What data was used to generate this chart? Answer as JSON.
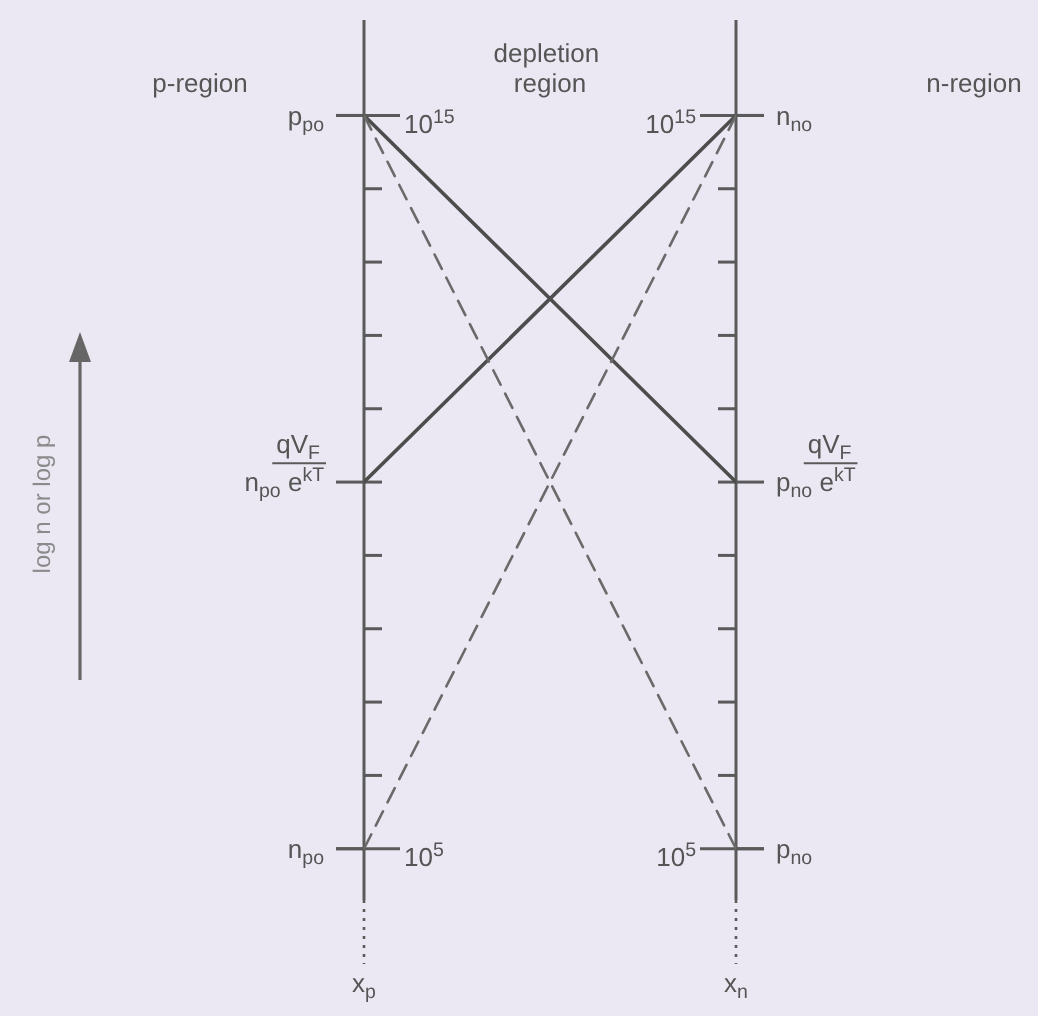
{
  "chart_data": {
    "type": "line",
    "categories": [
      "x$_{p}$",
      "x$_{n}$"
    ],
    "series": [
      {
        "color": "#4d4d4d",
        "line_style": "solid",
        "values": [
          1000000000000000.0,
          10000000000.0
        ]
      },
      {
        "color": "#4d4d4d",
        "line_style": "solid",
        "values": [
          10000000000.0,
          1000000000000000.0
        ]
      },
      {
        "color": "#6a6a6a",
        "line_style": "dashed",
        "values": [
          1000000000000000.0,
          100000.0
        ]
      },
      {
        "color": "#6a6a6a",
        "line_style": "dashed",
        "values": [
          100000.0,
          1000000000000000.0
        ]
      }
    ],
    "log": true,
    "ylim": [
      20000.0,
      2e+16
    ],
    "yticks": [
      {
        "value": 100000.0,
        "label": "10$^{5}$"
      },
      {
        "value": 1000000000000000.0,
        "label": "10$^{15}$"
      }
    ],
    "annotations": [
      "log n or log p",
      "p-region",
      "depletion region",
      "n-region",
      {
        "text": "p$_{po}$",
        "x": "x$_{p}$",
        "y": 1000000000000000.0
      },
      {
        "text": "qV$_{F}$",
        "x": "x$_{p}$",
        "y": 10000000000.0
      },
      {
        "text": "n$_{po}$ e$^{kT}$",
        "x": "x$_{p}$",
        "y": 10000000000.0
      },
      {
        "text": "n$_{po}$",
        "x": "x$_{p}$",
        "y": 100000.0
      },
      {
        "text": "10$^{15}$",
        "x": "x$_{n}$",
        "y": 1000000000000000.0
      },
      {
        "text": "n$_{no}$",
        "x": "x$_{n}$",
        "y": 1000000000000000.0
      },
      {
        "text": "qV$_{F}$",
        "x": "x$_{n}$",
        "y": 10000000000.0
      },
      {
        "text": "p$_{no}$ e$^{kT}$",
        "x": "x$_{n}$",
        "y": 10000000000.0
      },
      {
        "text": "10$^{5}$",
        "x": "x$_{n}$",
        "y": 100000.0
      },
      {
        "text": "p$_{no}$",
        "x": "x$_{n}$",
        "y": 100000.0
      }
    ]
  }
}
